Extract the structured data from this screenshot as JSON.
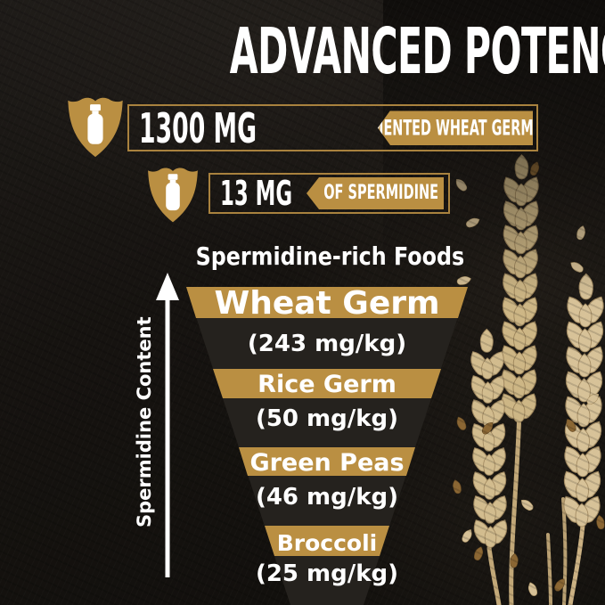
{
  "title": "ADVANCED POTENCY FORMULA",
  "badges": [
    {
      "amount": "1300 MG",
      "label": "OF FERMENTED WHEAT GERM EXTRACT"
    },
    {
      "amount": "13 MG",
      "label": "OF SPERMIDINE"
    }
  ],
  "chart_data": {
    "type": "funnel",
    "title": "Spermidine-rich Foods",
    "axis_label": "Spermidine Content",
    "unit": "mg/kg",
    "order": "descending",
    "legend": false,
    "categories": [
      "Wheat Germ",
      "Rice Germ",
      "Green Peas",
      "Broccoli"
    ],
    "values": [
      243,
      50,
      46,
      25
    ],
    "items": [
      {
        "name": "Wheat Germ",
        "value_label": "(243 mg/kg)"
      },
      {
        "name": "Rice Germ",
        "value_label": "(50 mg/kg)"
      },
      {
        "name": "Green Peas",
        "value_label": "(46 mg/kg)"
      },
      {
        "name": "Broccoli",
        "value_label": "(25 mg/kg)"
      }
    ]
  },
  "icons": {
    "badge_icon": "shield-bottle-icon",
    "axis_icon": "up-arrow-icon",
    "decoration": "wheat-stalks-illustration"
  },
  "colors": {
    "gold": "#ba8f42",
    "background": "#161310",
    "funnel_dark": "#25221e",
    "text": "#ffffff",
    "wheat": "#d2bc8e"
  }
}
